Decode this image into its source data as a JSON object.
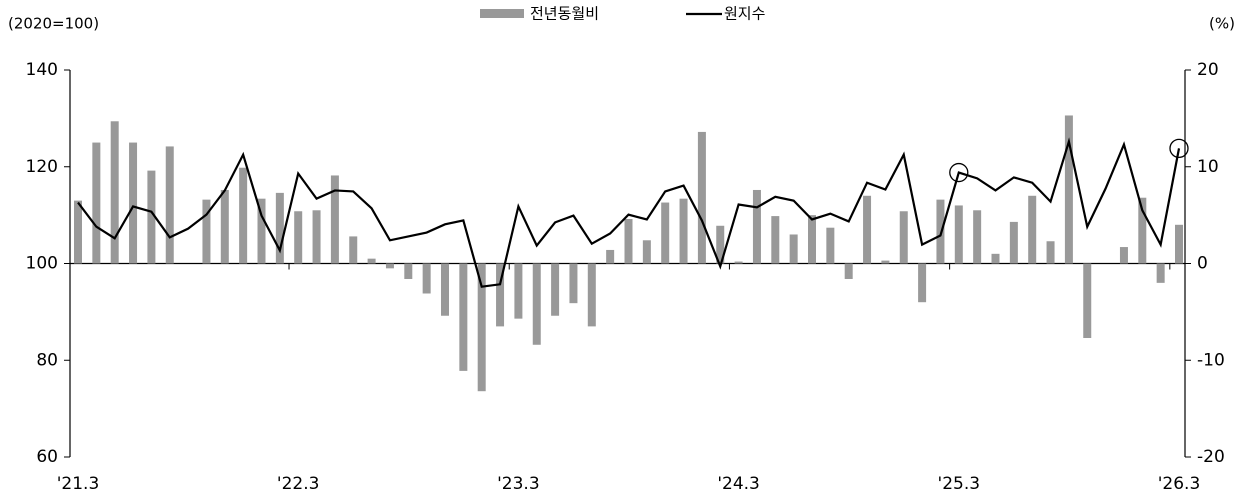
{
  "chart_data": {
    "type": "bar_line",
    "y_label": "(2020=100)",
    "y2_label": "(%)",
    "categories": [
      "'21.3",
      null,
      null,
      null,
      null,
      null,
      null,
      null,
      null,
      null,
      null,
      null,
      "'22.3",
      null,
      null,
      null,
      null,
      null,
      null,
      null,
      null,
      null,
      null,
      null,
      "'23.3",
      null,
      null,
      null,
      null,
      null,
      null,
      null,
      null,
      null,
      null,
      null,
      "'24.3",
      null,
      null,
      null,
      null,
      null,
      null,
      null,
      null,
      null,
      null,
      null,
      "'25.3",
      null,
      null,
      null,
      null,
      null,
      null,
      null,
      null,
      null,
      null,
      null,
      "'26.3"
    ],
    "series": [
      {
        "name": "전년동월비",
        "kind": "bar",
        "axis": "y2",
        "color": "#999999",
        "values": [
          6.5,
          12.5,
          14.7,
          12.5,
          9.6,
          12.1,
          null,
          6.6,
          7.6,
          9.9,
          6.7,
          7.3,
          5.4,
          5.5,
          9.1,
          2.8,
          0.5,
          -0.5,
          -1.6,
          -3.1,
          -5.4,
          -11.1,
          -13.2,
          -6.5,
          -5.7,
          -8.4,
          -5.4,
          -4.1,
          -6.5,
          1.4,
          4.6,
          2.4,
          6.3,
          6.7,
          13.6,
          3.9,
          0.2,
          7.6,
          4.9,
          3.0,
          5.0,
          3.7,
          -1.6,
          7.0,
          0.3,
          5.4,
          -4.0,
          6.6,
          6.0,
          5.5,
          1.0,
          4.3,
          7.0,
          2.3,
          15.3,
          -7.7,
          null,
          1.7,
          6.8,
          -2.0,
          4.0
        ]
      },
      {
        "name": "원지수",
        "kind": "line",
        "axis": "y",
        "color": "#000000",
        "values": [
          112.6,
          107.6,
          105.2,
          111.8,
          110.7,
          105.4,
          107.2,
          110.1,
          115.1,
          122.5,
          109.9,
          102.7,
          118.6,
          113.4,
          115.1,
          114.9,
          111.4,
          104.8,
          105.6,
          106.4,
          108.1,
          108.9,
          95.2,
          95.7,
          111.8,
          103.7,
          108.5,
          109.9,
          104.1,
          106.2,
          110.1,
          109.1,
          114.9,
          116.1,
          108.9,
          99.4,
          112.2,
          111.6,
          113.8,
          113.0,
          109.1,
          110.3,
          108.7,
          116.7,
          115.3,
          122.5,
          103.9,
          105.8,
          118.8,
          117.6,
          115.1,
          117.8,
          116.7,
          112.8,
          125.2,
          107.6,
          115.5,
          124.6,
          111.0,
          103.9,
          123.8
        ],
        "circled": [
          48,
          60
        ]
      }
    ],
    "ylim": [
      60,
      140
    ],
    "yticks": [
      60,
      80,
      100,
      120,
      140
    ],
    "y2lim": [
      -20,
      20
    ],
    "y2ticks": [
      -20,
      -10,
      0,
      10,
      20
    ]
  }
}
